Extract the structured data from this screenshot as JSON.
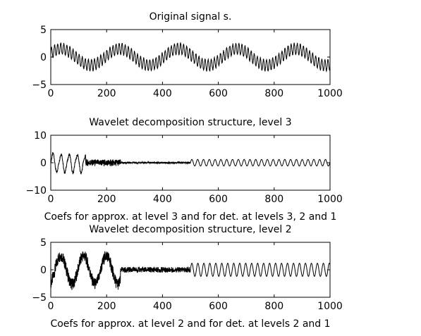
{
  "chart_data": [
    {
      "type": "line",
      "title": "Original signal s.",
      "xlabel": "",
      "xlim": [
        0,
        1000
      ],
      "ylim": [
        -5,
        5
      ],
      "xticks": [
        "0",
        "200",
        "400",
        "600",
        "800",
        "1000"
      ],
      "yticks": [
        "5",
        "0",
        "−5"
      ],
      "series": [
        {
          "description_values": "dense oscillation (amplitude ~1) riding on a slow wave of amplitude ~1.5; envelope peaks near x=40, 260, 470, 680, 890",
          "x": [
            0,
            50,
            100,
            150,
            200,
            250,
            300,
            350,
            400,
            450,
            500,
            550,
            600,
            650,
            700,
            750,
            800,
            850,
            900,
            950,
            1000
          ],
          "y": [
            0.2,
            1.2,
            0.1,
            -1.0,
            -0.6,
            1.3,
            1.0,
            -0.6,
            -1.2,
            0.4,
            1.2,
            0.3,
            -1.1,
            -0.4,
            1.4,
            0.6,
            -1.0,
            -0.9,
            1.0,
            0.9,
            -0.6
          ]
        }
      ]
    },
    {
      "type": "line",
      "title": "Wavelet decomposition structure, level 3",
      "xlabel": "Coefs for approx. at level 3 and for det. at levels 3, 2 and 1",
      "xlim": [
        0,
        1000
      ],
      "ylim": [
        -10,
        10
      ],
      "xticks": [
        "0",
        "200",
        "400",
        "600",
        "800",
        "1000"
      ],
      "yticks": [
        "10",
        "0",
        "−10"
      ],
      "segments": [
        {
          "name": "approximation level 3",
          "x_range": [
            0,
            125
          ],
          "amplitude": 4.0
        },
        {
          "name": "detail level 3",
          "x_range": [
            125,
            250
          ],
          "amplitude": 1.2
        },
        {
          "name": "detail level 2",
          "x_range": [
            250,
            500
          ],
          "amplitude": 0.3
        },
        {
          "name": "detail level 1",
          "x_range": [
            500,
            1000
          ],
          "amplitude": 1.2
        }
      ]
    },
    {
      "type": "line",
      "title": "Wavelet decomposition structure, level 2",
      "xlabel": "Coefs for approx. at level 2 and for det. at levels 2 and 1",
      "xlim": [
        0,
        1000
      ],
      "ylim": [
        -5,
        5
      ],
      "xticks": [
        "0",
        "200",
        "400",
        "600",
        "800",
        "1000"
      ],
      "yticks": [
        "5",
        "0",
        "−5"
      ],
      "segments": [
        {
          "name": "approximation level 2",
          "x_range": [
            0,
            250
          ],
          "amplitude": 3.0
        },
        {
          "name": "detail level 2",
          "x_range": [
            250,
            500
          ],
          "amplitude": 0.5
        },
        {
          "name": "detail level 1",
          "x_range": [
            500,
            1000
          ],
          "amplitude": 1.2
        }
      ]
    }
  ]
}
